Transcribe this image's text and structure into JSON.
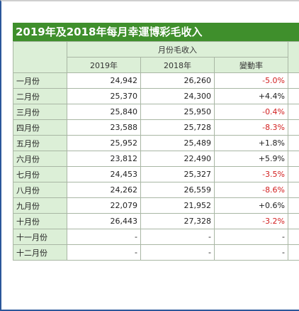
{
  "title": "2019年及2018年每月幸運博彩毛收入",
  "group_header": "月份毛收入",
  "columns": [
    "2019年",
    "2018年",
    "變動率"
  ],
  "rows": [
    {
      "month": "一月份",
      "y2019": "24,942",
      "y2018": "26,260",
      "change": "-5.0%"
    },
    {
      "month": "二月份",
      "y2019": "25,370",
      "y2018": "24,300",
      "change": "+4.4%"
    },
    {
      "month": "三月份",
      "y2019": "25,840",
      "y2018": "25,950",
      "change": "-0.4%"
    },
    {
      "month": "四月份",
      "y2019": "23,588",
      "y2018": "25,728",
      "change": "-8.3%"
    },
    {
      "month": "五月份",
      "y2019": "25,952",
      "y2018": "25,489",
      "change": "+1.8%"
    },
    {
      "month": "六月份",
      "y2019": "23,812",
      "y2018": "22,490",
      "change": "+5.9%"
    },
    {
      "month": "七月份",
      "y2019": "24,453",
      "y2018": "25,327",
      "change": "-3.5%"
    },
    {
      "month": "八月份",
      "y2019": "24,262",
      "y2018": "26,559",
      "change": "-8.6%"
    },
    {
      "month": "九月份",
      "y2019": "22,079",
      "y2018": "21,952",
      "change": "+0.6%"
    },
    {
      "month": "十月份",
      "y2019": "26,443",
      "y2018": "27,328",
      "change": "-3.2%"
    },
    {
      "month": "十一月份",
      "y2019": "-",
      "y2018": "-",
      "change": "-"
    },
    {
      "month": "十二月份",
      "y2019": "-",
      "y2018": "-",
      "change": "-"
    }
  ],
  "colors": {
    "title_bg": "#3f8f2c",
    "header_bg": "#dcefd7",
    "negative": "#d22020"
  }
}
